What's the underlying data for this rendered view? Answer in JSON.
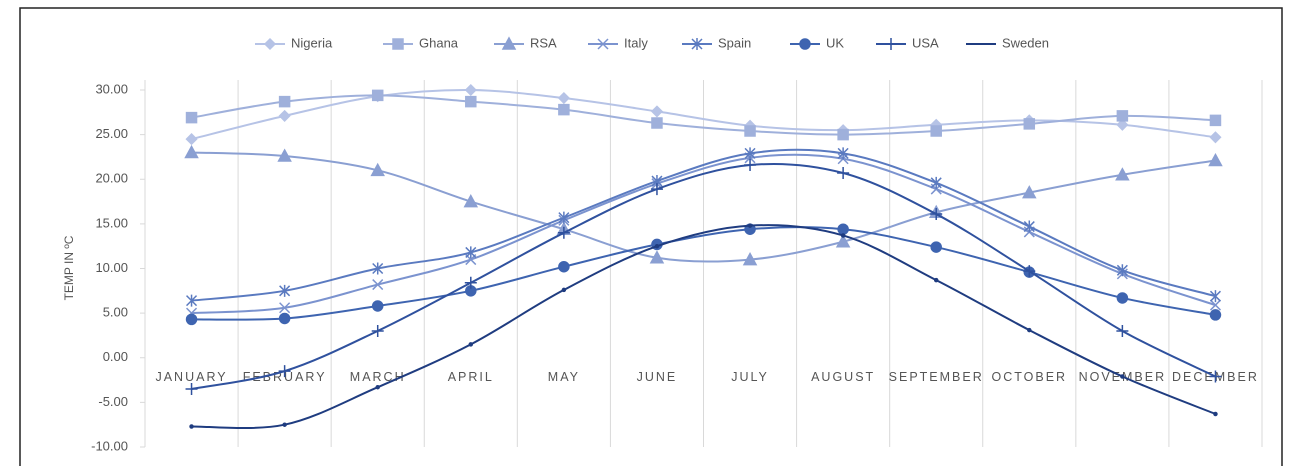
{
  "chart_data": {
    "type": "line",
    "y_label": "TEMP IN ºC",
    "categories": [
      "JANUARY",
      "FEBRUARY",
      "MARCH",
      "APRIL",
      "MAY",
      "JUNE",
      "JULY",
      "AUGUST",
      "SEPTEMBER",
      "OCTOBER",
      "NOVEMBER",
      "DECEMBER"
    ],
    "ylim": [
      -10,
      30
    ],
    "yticks": [
      {
        "value": -10,
        "label": "-10.00"
      },
      {
        "value": -5,
        "label": "-5.00"
      },
      {
        "value": 0,
        "label": "0.00"
      },
      {
        "value": 5,
        "label": "5.00"
      },
      {
        "value": 10,
        "label": "10.00"
      },
      {
        "value": 15,
        "label": "15.00"
      },
      {
        "value": 20,
        "label": "20.00"
      },
      {
        "value": 25,
        "label": "25.00"
      },
      {
        "value": 30,
        "label": "30.00"
      }
    ],
    "legend": "top",
    "series": [
      {
        "name": "Nigeria",
        "color": "#b6c3e6",
        "marker": "diamond",
        "values": [
          24.5,
          27.1,
          29.3,
          30.0,
          29.1,
          27.6,
          26.0,
          25.5,
          26.1,
          26.6,
          26.1,
          24.7
        ]
      },
      {
        "name": "Ghana",
        "color": "#9fb0db",
        "marker": "square",
        "values": [
          26.9,
          28.7,
          29.4,
          28.7,
          27.8,
          26.3,
          25.4,
          25.0,
          25.4,
          26.2,
          27.1,
          26.6
        ]
      },
      {
        "name": "RSA",
        "color": "#8a9fd2",
        "marker": "triangle",
        "values": [
          23.0,
          22.6,
          21.0,
          17.5,
          14.4,
          11.2,
          11.0,
          13.0,
          16.3,
          18.5,
          20.5,
          22.1
        ]
      },
      {
        "name": "Italy",
        "color": "#7b93cf",
        "marker": "x",
        "values": [
          5.0,
          5.6,
          8.2,
          11.0,
          15.4,
          19.5,
          22.4,
          22.3,
          18.9,
          14.1,
          9.4,
          5.9
        ]
      },
      {
        "name": "Spain",
        "color": "#5a7ac0",
        "marker": "asterisk",
        "values": [
          6.4,
          7.5,
          10.0,
          11.8,
          15.7,
          19.8,
          22.9,
          22.9,
          19.6,
          14.7,
          9.8,
          6.9
        ]
      },
      {
        "name": "UK",
        "color": "#3e64b0",
        "marker": "circle",
        "values": [
          4.3,
          4.4,
          5.8,
          7.5,
          10.2,
          12.7,
          14.4,
          14.4,
          12.4,
          9.6,
          6.7,
          4.8
        ]
      },
      {
        "name": "USA",
        "color": "#2f519e",
        "marker": "plus",
        "values": [
          -3.5,
          -1.5,
          3.0,
          8.4,
          14.0,
          18.9,
          21.6,
          20.7,
          16.1,
          9.7,
          3.0,
          -2.1
        ]
      },
      {
        "name": "Sweden",
        "color": "#1f3c80",
        "marker": "none",
        "values": [
          -7.7,
          -7.5,
          -3.3,
          1.5,
          7.6,
          12.5,
          14.8,
          13.7,
          8.7,
          3.1,
          -2.1,
          -6.3
        ]
      }
    ]
  }
}
